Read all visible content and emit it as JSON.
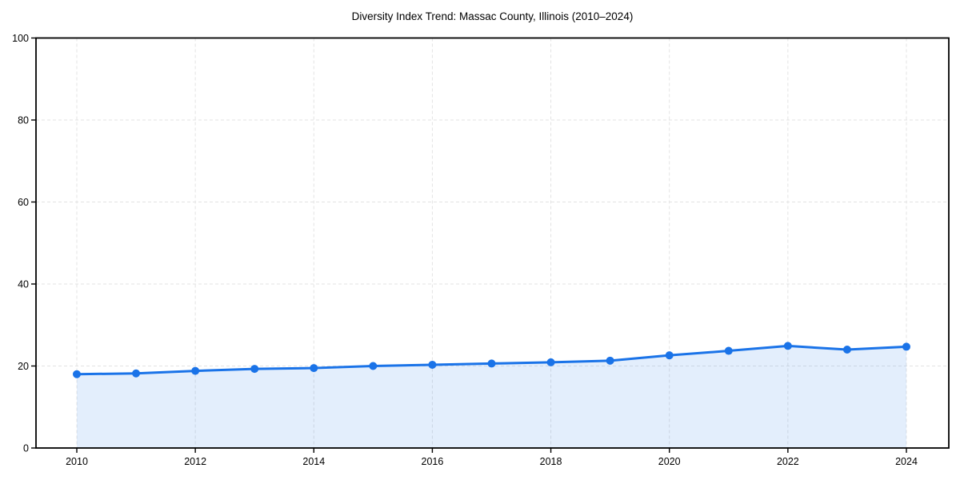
{
  "page": {
    "background": "#ffffff"
  },
  "chart_data": {
    "type": "line",
    "title": "Diversity Index Trend: Massac County, Illinois (2010–2024)",
    "xlabel": "",
    "ylabel": "",
    "x": [
      2010,
      2011,
      2012,
      2013,
      2014,
      2015,
      2016,
      2017,
      2018,
      2019,
      2020,
      2021,
      2022,
      2023,
      2024
    ],
    "series": [
      {
        "name": "Diversity Index",
        "values": [
          18.0,
          18.2,
          18.8,
          19.3,
          19.5,
          20.0,
          20.3,
          20.6,
          20.9,
          21.3,
          22.6,
          23.7,
          24.9,
          24.0,
          24.7
        ]
      }
    ],
    "ylim": [
      0,
      100
    ],
    "x_ticks": [
      2010,
      2012,
      2014,
      2016,
      2018,
      2020,
      2022,
      2024
    ],
    "y_ticks": [
      0,
      20,
      40,
      60,
      80,
      100
    ],
    "grid": true,
    "grid_style": "dashed",
    "legend": false,
    "marker": "circle",
    "area_fill": true,
    "colors": {
      "line": "#1a73e8",
      "fill": "rgba(26,115,232,0.12)",
      "grid": "#e3e3e3",
      "spine": "#000000",
      "text": "#000000"
    }
  }
}
